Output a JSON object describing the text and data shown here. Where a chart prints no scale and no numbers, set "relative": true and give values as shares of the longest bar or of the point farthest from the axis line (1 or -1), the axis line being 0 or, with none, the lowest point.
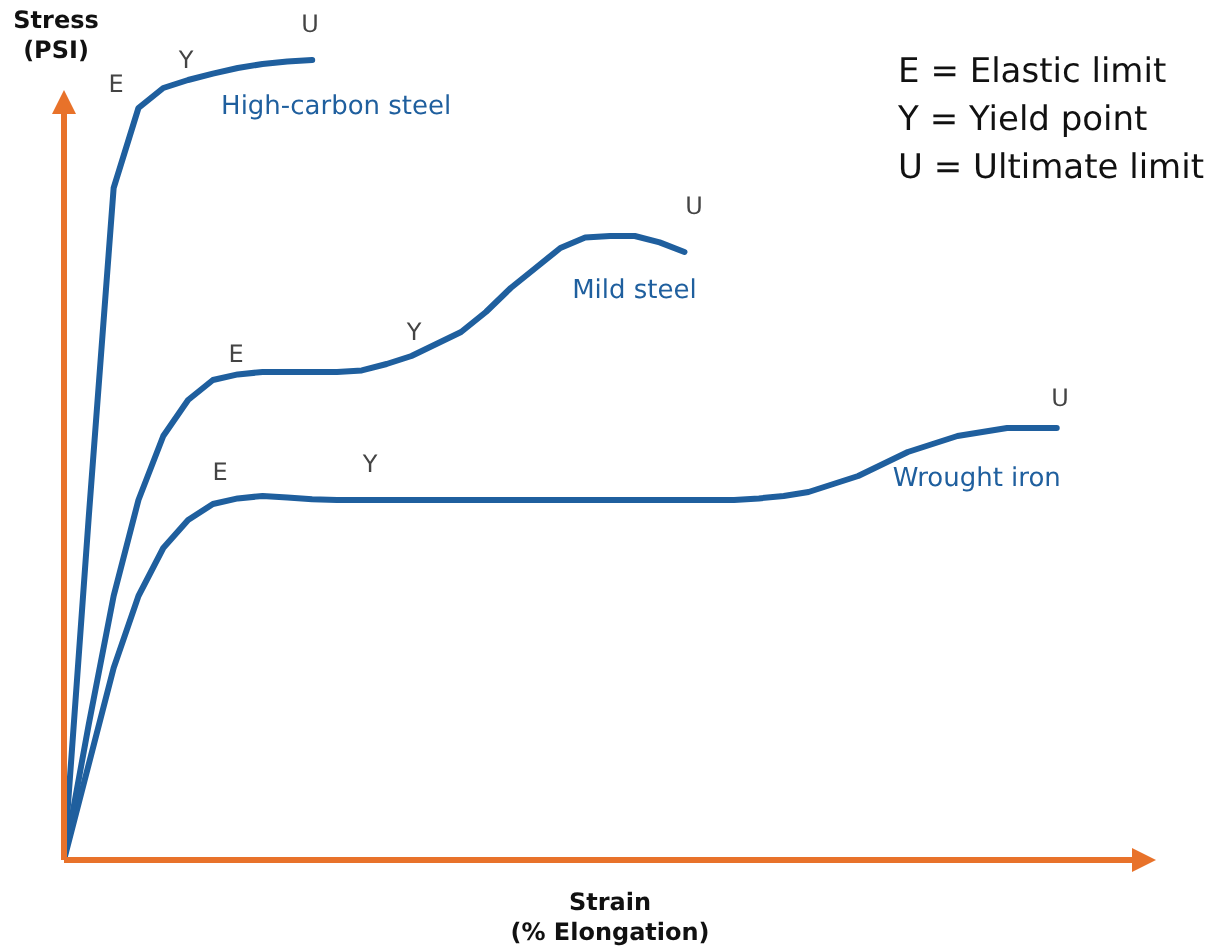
{
  "chart_data": {
    "type": "line",
    "relative": true,
    "xlabel": "Strain (% Elongation)",
    "ylabel": "Stress (PSI)",
    "legend": false,
    "marker": "none",
    "line_style": "solid",
    "categories": [
      null,
      null,
      null,
      null,
      null,
      null,
      null,
      null,
      null,
      null,
      null,
      null,
      null,
      null,
      null,
      null,
      null,
      null,
      null,
      null,
      null,
      null,
      null,
      null,
      null,
      null,
      null,
      null,
      null,
      null,
      null,
      null,
      null,
      null,
      null,
      null,
      null,
      null,
      null,
      null,
      null,
      null,
      null,
      null,
      null
    ],
    "series": [
      {
        "name": "High-carbon steel",
        "color": "#1f5f9e",
        "values": [
          0,
          0.43,
          0.84,
          0.94,
          0.965,
          0.975,
          0.983,
          0.99,
          0.995,
          0.998,
          1,
          null,
          null,
          null,
          null,
          null,
          null,
          null,
          null,
          null,
          null,
          null,
          null,
          null,
          null,
          null,
          null,
          null,
          null,
          null,
          null,
          null,
          null,
          null,
          null,
          null,
          null,
          null,
          null,
          null,
          null,
          null,
          null,
          null,
          null
        ]
      },
      {
        "name": "Mild steel",
        "color": "#1f5f9e",
        "values": [
          0,
          0.17,
          0.33,
          0.45,
          0.53,
          0.575,
          0.6,
          0.607,
          0.61,
          0.61,
          0.61,
          0.61,
          0.612,
          0.62,
          0.63,
          0.645,
          0.66,
          0.685,
          0.715,
          0.74,
          0.765,
          0.778,
          0.78,
          0.78,
          0.772,
          0.76,
          null,
          null,
          null,
          null,
          null,
          null,
          null,
          null,
          null,
          null,
          null,
          null,
          null,
          null,
          null,
          null,
          null,
          null,
          null
        ]
      },
      {
        "name": "Wrought iron",
        "color": "#1f5f9e",
        "values": [
          0,
          0.12,
          0.24,
          0.33,
          0.39,
          0.425,
          0.445,
          0.452,
          0.455,
          0.453,
          0.451,
          0.45,
          0.45,
          0.45,
          0.45,
          0.45,
          0.45,
          0.45,
          0.45,
          0.45,
          0.45,
          0.45,
          0.45,
          0.45,
          0.45,
          0.45,
          0.45,
          0.45,
          0.452,
          0.455,
          0.46,
          0.47,
          0.48,
          0.495,
          0.51,
          0.52,
          0.53,
          0.535,
          0.54,
          0.54,
          0.54,
          null,
          null,
          null,
          null
        ]
      }
    ],
    "annotations": [
      "E",
      "Y",
      "U",
      "E",
      "Y",
      "U",
      "E",
      "Y",
      "U",
      "E = Elastic limit",
      "Y = Yield point",
      "U = Ultimate limit"
    ]
  }
}
